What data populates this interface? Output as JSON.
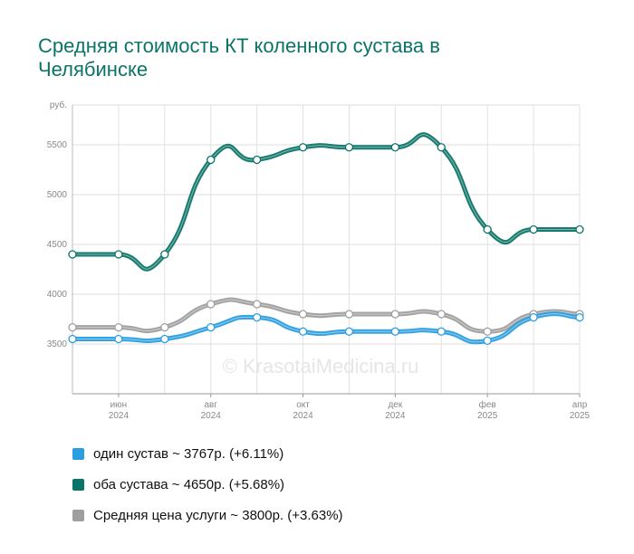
{
  "title": "Средняя стоимость КТ коленного сустава в Челябинске",
  "watermark": "© KrasotaiMedicina.ru",
  "chart_data": {
    "type": "line",
    "ylabel": "руб.",
    "ylim": [
      3000,
      5900
    ],
    "yticks": [
      3500,
      4000,
      4500,
      5000,
      5500
    ],
    "grid": true,
    "legend_position": "bottom",
    "x": [
      "2024-05",
      "2024-06",
      "2024-07",
      "2024-08",
      "2024-09",
      "2024-10",
      "2024-11",
      "2024-12",
      "2025-01",
      "2025-02",
      "2025-03",
      "2025-04"
    ],
    "xticks": [
      {
        "month": "июн",
        "year": "2024",
        "index": 1
      },
      {
        "month": "авг",
        "year": "2024",
        "index": 3
      },
      {
        "month": "окт",
        "year": "2024",
        "index": 5
      },
      {
        "month": "дек",
        "year": "2024",
        "index": 7
      },
      {
        "month": "фев",
        "year": "2025",
        "index": 9
      },
      {
        "month": "апр",
        "year": "2025",
        "index": 11
      }
    ],
    "series": [
      {
        "name": "Средняя цена услуги",
        "color": "#9e9e9e",
        "values": [
          3667,
          3667,
          3667,
          3900,
          3900,
          3800,
          3800,
          3800,
          3800,
          3625,
          3800,
          3800
        ]
      },
      {
        "name": "один сустав",
        "color": "#2a9ee0",
        "values": [
          3550,
          3550,
          3550,
          3667,
          3767,
          3625,
          3625,
          3625,
          3625,
          3533,
          3767,
          3767
        ]
      },
      {
        "name": "оба сустава",
        "color": "#0b7468",
        "values": [
          4400,
          4400,
          4400,
          5350,
          5350,
          5475,
          5475,
          5475,
          5475,
          4650,
          4650,
          4650
        ]
      }
    ]
  },
  "legend": [
    {
      "text": "один сустав ~ 3767р. (+6.11%)",
      "color": "#2a9ee0"
    },
    {
      "text": "оба сустава ~ 4650р. (+5.68%)",
      "color": "#0b7468"
    },
    {
      "text": "Средняя цена услуги ~ 3800р. (+3.63%)",
      "color": "#9e9e9e"
    }
  ]
}
